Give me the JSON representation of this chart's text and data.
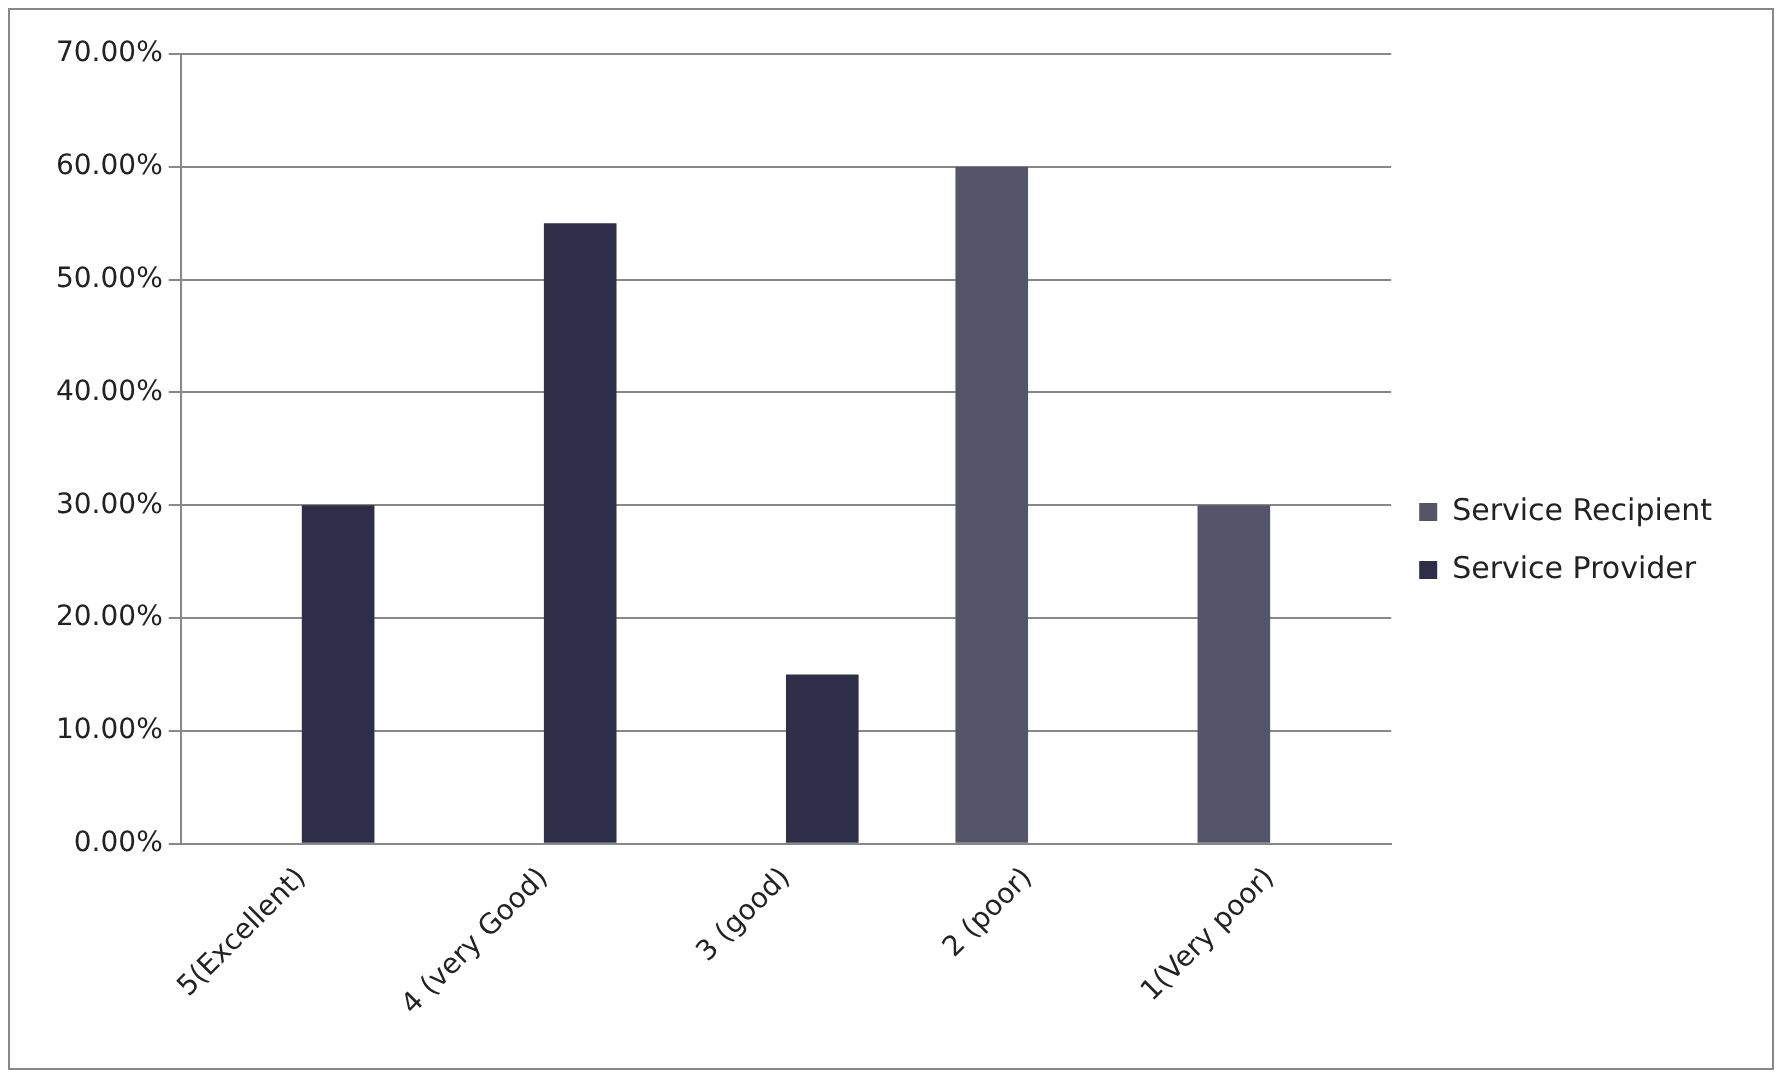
{
  "chart_data": {
    "type": "bar",
    "categories": [
      "5(Excellent)",
      "4 (very Good)",
      "3 (good)",
      "2 (poor)",
      "1(Very poor)"
    ],
    "series": [
      {
        "name": "Service Recipient",
        "color": "#55556a",
        "values": [
          null,
          null,
          null,
          60,
          30
        ]
      },
      {
        "name": "Service Provider",
        "color": "#2e2e48",
        "values": [
          30,
          55,
          15,
          null,
          null
        ]
      }
    ],
    "ylim": [
      0,
      70
    ],
    "yticks": [
      {
        "value": 0,
        "label": "0.00%"
      },
      {
        "value": 10,
        "label": "10.00%"
      },
      {
        "value": 20,
        "label": "20.00%"
      },
      {
        "value": 30,
        "label": "30.00%"
      },
      {
        "value": 40,
        "label": "40.00%"
      },
      {
        "value": 50,
        "label": "50.00%"
      },
      {
        "value": 60,
        "label": "60.00%"
      },
      {
        "value": 70,
        "label": "70.00%"
      }
    ],
    "grid": "y",
    "legend": "right"
  }
}
